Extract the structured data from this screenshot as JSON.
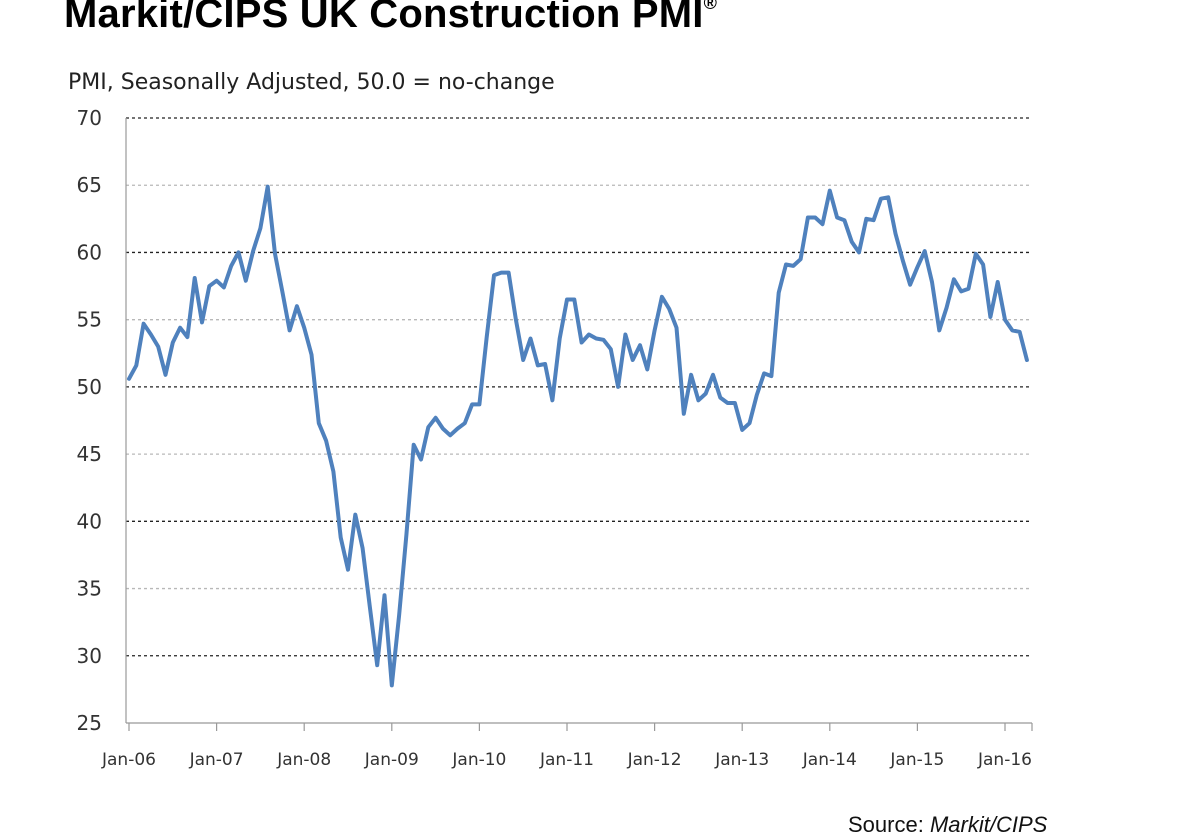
{
  "title_main": "Markit/CIPS UK Construction PMI",
  "title_mark": "®",
  "source_prefix": "Source: ",
  "source_name": "Markit/CIPS",
  "chart_data": {
    "type": "line",
    "title": "Markit/CIPS UK Construction PMI®",
    "subtitle": "PMI, Seasonally Adjusted, 50.0 = no-change",
    "xlabel": "",
    "ylabel": "",
    "ylim": [
      25,
      70
    ],
    "yticks": [
      25,
      30,
      35,
      40,
      45,
      50,
      55,
      60,
      65,
      70
    ],
    "xticks": [
      "Jan-06",
      "Jan-07",
      "Jan-08",
      "Jan-09",
      "Jan-10",
      "Jan-11",
      "Jan-12",
      "Jan-13",
      "Jan-14",
      "Jan-15",
      "Jan-16"
    ],
    "grid": "horizontal dashed",
    "x_start": "Jan-06",
    "x_frequency": "monthly",
    "series": [
      {
        "color": "#4f81bd",
        "values": [
          50.6,
          51.6,
          54.7,
          53.9,
          53.0,
          50.9,
          53.3,
          54.4,
          53.7,
          58.1,
          54.8,
          57.5,
          57.9,
          57.4,
          59.0,
          60.0,
          57.9,
          60.1,
          61.8,
          64.9,
          59.9,
          57.1,
          54.2,
          56.0,
          54.4,
          52.4,
          47.3,
          46.0,
          43.7,
          38.8,
          36.4,
          40.5,
          38.0,
          33.6,
          29.3,
          34.5,
          27.8,
          33.0,
          39.0,
          45.7,
          44.6,
          47.0,
          47.7,
          46.9,
          46.4,
          46.9,
          47.3,
          48.7,
          48.7,
          53.7,
          58.3,
          58.5,
          58.5,
          55.0,
          52.0,
          53.6,
          51.6,
          51.7,
          49.0,
          53.6,
          56.5,
          56.5,
          53.3,
          53.9,
          53.6,
          53.5,
          52.8,
          50.0,
          53.9,
          52.0,
          53.1,
          51.3,
          54.2,
          56.7,
          55.8,
          54.4,
          48.0,
          50.9,
          49.0,
          49.5,
          50.9,
          49.2,
          48.8,
          48.8,
          46.8,
          47.3,
          49.4,
          51.0,
          50.8,
          57.0,
          59.1,
          59.0,
          59.5,
          62.6,
          62.6,
          62.1,
          64.6,
          62.6,
          62.4,
          60.8,
          60.0,
          62.5,
          62.4,
          64.0,
          64.1,
          61.4,
          59.4,
          57.6,
          58.9,
          60.1,
          57.8,
          54.2,
          55.9,
          58.0,
          57.1,
          57.3,
          59.9,
          59.1,
          55.2,
          57.8,
          55.0,
          54.2,
          54.1,
          52.0
        ]
      }
    ]
  }
}
